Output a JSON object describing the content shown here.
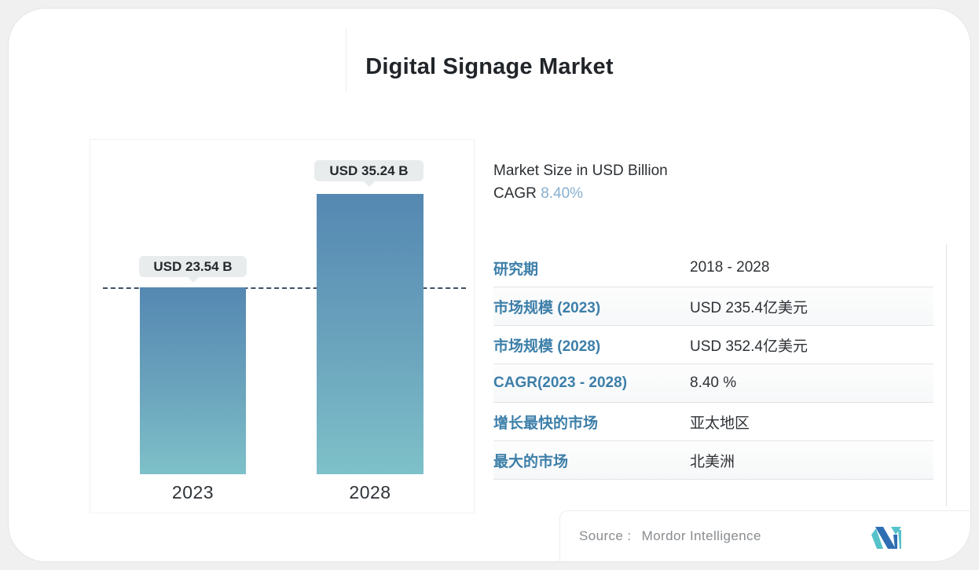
{
  "page": {
    "title": "Digital Signage Market"
  },
  "chart_data": {
    "type": "bar",
    "categories": [
      "2023",
      "2028"
    ],
    "values": [
      23.54,
      35.24
    ],
    "value_labels": [
      "USD 23.54 B",
      "USD 35.24 B"
    ],
    "title": "Digital Signage Market",
    "ylabel": "Market Size in USD Billion",
    "ylim": [
      0,
      38
    ],
    "grid": false,
    "reference_line": 23.54,
    "bar_gradient_top": "#5588b2",
    "bar_gradient_bottom": "#7ec1c9"
  },
  "info": {
    "market_size_label": "Market Size in USD Billion",
    "cagr_label": "CAGR",
    "cagr_value": "8.40%"
  },
  "facts": {
    "rows": [
      {
        "label": "研究期",
        "value": "2018 - 2028"
      },
      {
        "label": "市场规模 (2023)",
        "value": "USD 235.4亿美元"
      },
      {
        "label": "市场规模 (2028)",
        "value": "USD 352.4亿美元"
      },
      {
        "label": "CAGR(2023 - 2028)",
        "value": "8.40 %"
      },
      {
        "label": "增长最快的市场",
        "value": "亚太地区"
      },
      {
        "label": "最大的市场",
        "value": "北美洲"
      }
    ]
  },
  "footer": {
    "source_label": "Source :",
    "source_value": "Mordor Intelligence"
  },
  "colors": {
    "accent_label_blue": "#3d7fa9",
    "cagr_value_blue": "#87b0d1",
    "dashed_line": "#3e5061",
    "pill_background": "#e8eced",
    "logo_blue": "#2f6eb3",
    "logo_teal": "#56c2ca"
  }
}
